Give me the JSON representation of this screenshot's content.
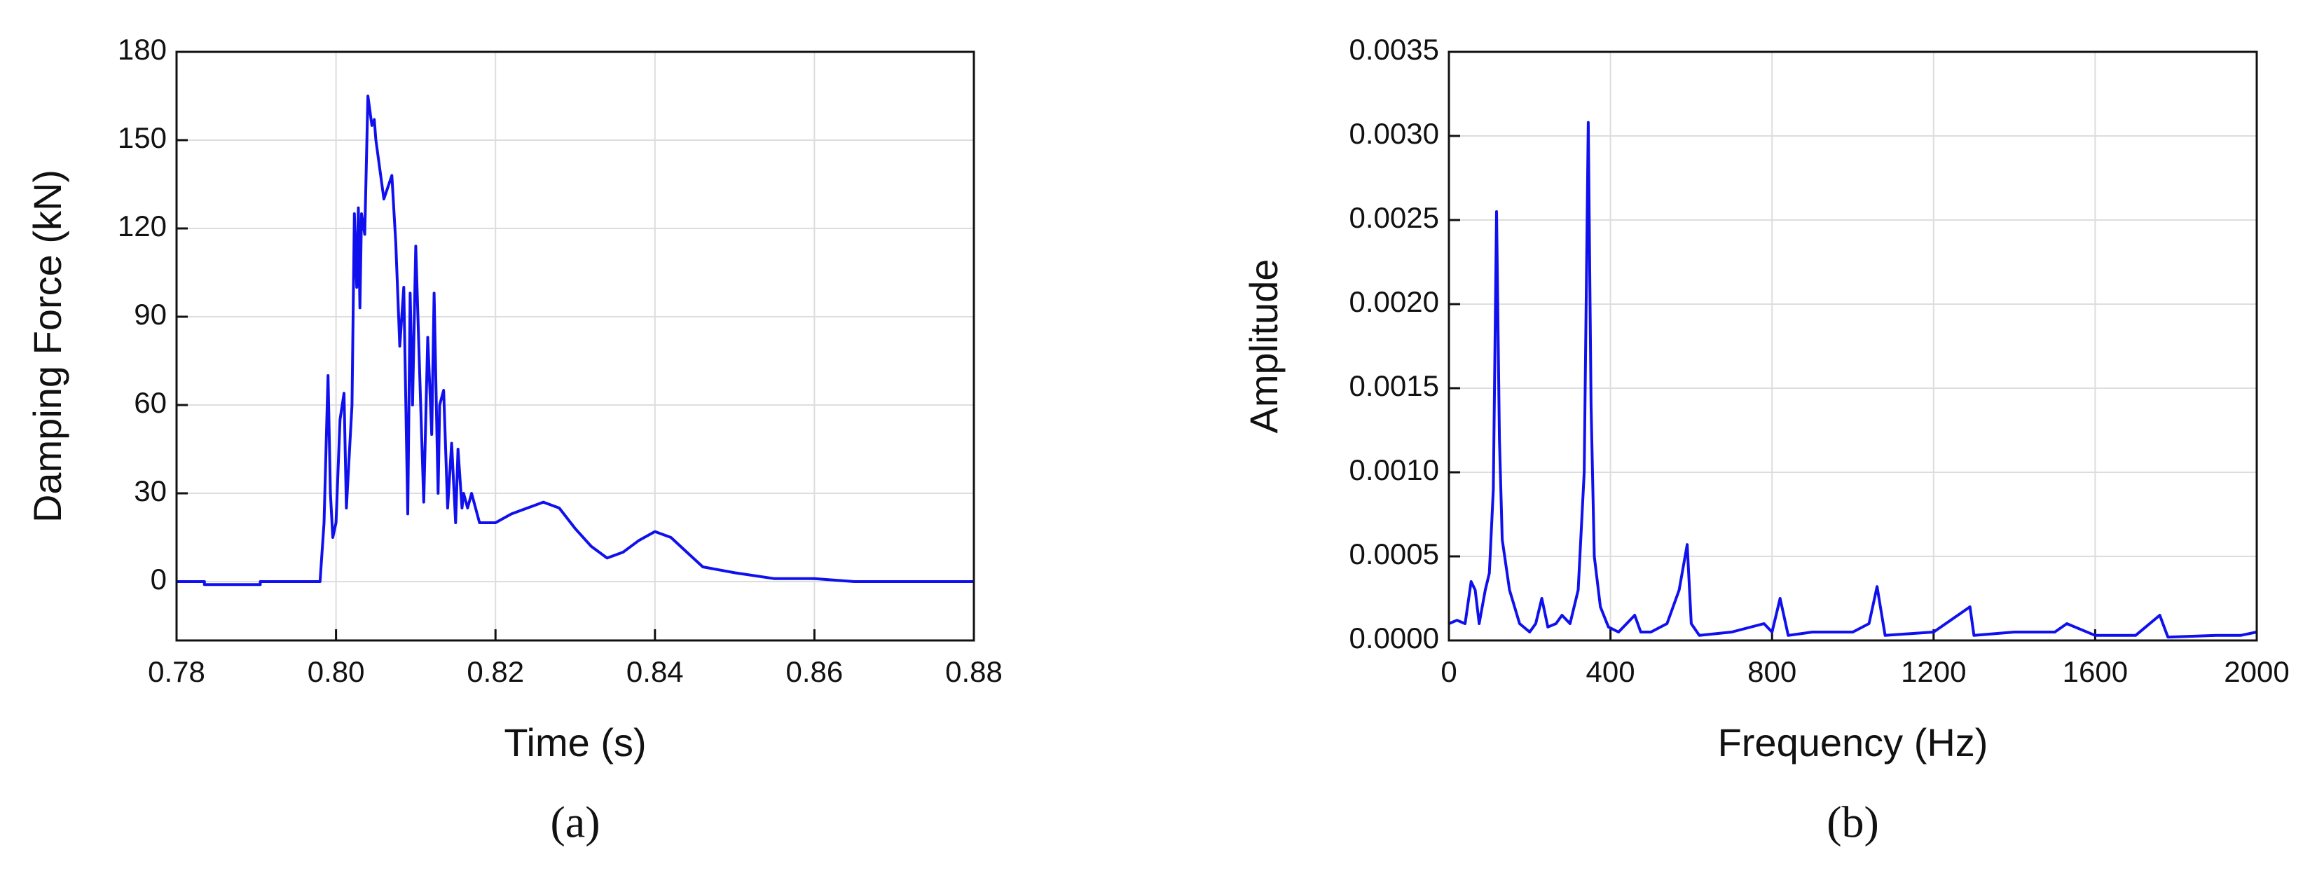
{
  "chart_data": [
    {
      "type": "line",
      "caption": "(a)",
      "x_label": "Time (s)",
      "y_label": "Damping Force (kN)",
      "color": "#1010ee",
      "grid": true,
      "xlim": [
        0.78,
        0.88
      ],
      "ylim": [
        -20,
        180
      ],
      "xticks": [
        0.78,
        {
          "value": 0.8,
          "label": "0.80"
        },
        0.82,
        0.84,
        0.86,
        0.88
      ],
      "yticks": [
        0,
        30,
        60,
        90,
        120,
        150,
        180
      ],
      "x": [
        0.78,
        0.7835,
        0.7835,
        0.7905,
        0.7905,
        0.798,
        0.7985,
        0.7988,
        0.799,
        0.7993,
        0.7996,
        0.8,
        0.8005,
        0.801,
        0.8013,
        0.8018,
        0.802,
        0.8023,
        0.8026,
        0.8028,
        0.803,
        0.8032,
        0.8036,
        0.804,
        0.8045,
        0.8048,
        0.805,
        0.806,
        0.807,
        0.8075,
        0.808,
        0.8085,
        0.809,
        0.8093,
        0.8096,
        0.81,
        0.8105,
        0.811,
        0.8115,
        0.812,
        0.8123,
        0.8128,
        0.813,
        0.8135,
        0.814,
        0.8145,
        0.815,
        0.8153,
        0.8158,
        0.816,
        0.8165,
        0.817,
        0.818,
        0.819,
        0.82,
        0.822,
        0.824,
        0.826,
        0.828,
        0.83,
        0.832,
        0.834,
        0.836,
        0.838,
        0.84,
        0.842,
        0.844,
        0.846,
        0.848,
        0.85,
        0.855,
        0.86,
        0.865,
        0.87,
        0.875,
        0.88
      ],
      "values": [
        0,
        0,
        -1,
        -1,
        0,
        0,
        20,
        50,
        70,
        30,
        15,
        20,
        55,
        64,
        25,
        50,
        60,
        125,
        100,
        127,
        93,
        125,
        118,
        165,
        155,
        157,
        150,
        130,
        138,
        115,
        80,
        100,
        23,
        98,
        60,
        114,
        70,
        27,
        83,
        50,
        98,
        30,
        60,
        65,
        25,
        47,
        20,
        45,
        25,
        30,
        25,
        30,
        20,
        20,
        20,
        23,
        25,
        27,
        25,
        18,
        12,
        8,
        10,
        14,
        17,
        15,
        10,
        5,
        4,
        3,
        1,
        1,
        0,
        0,
        0,
        0
      ]
    },
    {
      "type": "line",
      "caption": "(b)",
      "x_label": "Frequency (Hz)",
      "y_label": "Amplitude",
      "color": "#1010ee",
      "grid": true,
      "xlim": [
        0,
        2000
      ],
      "ylim": [
        0,
        0.0035
      ],
      "xticks": [
        0,
        400,
        800,
        1200,
        1600,
        2000
      ],
      "yticks": [
        {
          "value": 0,
          "label": "0.0000"
        },
        {
          "value": 0.0005,
          "label": "0.0005"
        },
        {
          "value": 0.001,
          "label": "0.0010"
        },
        {
          "value": 0.0015,
          "label": "0.0015"
        },
        {
          "value": 0.002,
          "label": "0.0020"
        },
        {
          "value": 0.0025,
          "label": "0.0025"
        },
        {
          "value": 0.003,
          "label": "0.0030"
        },
        {
          "value": 0.0035,
          "label": "0.0035"
        }
      ],
      "x": [
        0,
        20,
        40,
        55,
        65,
        75,
        90,
        100,
        110,
        118,
        125,
        132,
        150,
        175,
        200,
        215,
        230,
        245,
        265,
        280,
        300,
        320,
        335,
        345,
        352,
        360,
        375,
        395,
        420,
        440,
        460,
        475,
        500,
        540,
        570,
        590,
        600,
        620,
        700,
        780,
        800,
        820,
        840,
        900,
        1000,
        1040,
        1060,
        1080,
        1200,
        1290,
        1300,
        1400,
        1500,
        1530,
        1600,
        1700,
        1760,
        1780,
        1900,
        1960,
        2000
      ],
      "values": [
        0.0001,
        0.00012,
        0.0001,
        0.00035,
        0.0003,
        0.0001,
        0.0003,
        0.0004,
        0.0009,
        0.00255,
        0.0012,
        0.0006,
        0.0003,
        0.0001,
        5e-05,
        0.0001,
        0.00025,
        8e-05,
        0.0001,
        0.00015,
        0.0001,
        0.0003,
        0.001,
        0.00308,
        0.0014,
        0.0005,
        0.0002,
        8e-05,
        5e-05,
        0.0001,
        0.00015,
        5e-05,
        5e-05,
        0.0001,
        0.0003,
        0.00057,
        0.0001,
        3e-05,
        5e-05,
        0.0001,
        5e-05,
        0.00025,
        3e-05,
        5e-05,
        5e-05,
        0.0001,
        0.00032,
        3e-05,
        5e-05,
        0.0002,
        3e-05,
        5e-05,
        5e-05,
        0.0001,
        3e-05,
        3e-05,
        0.00015,
        2e-05,
        3e-05,
        3e-05,
        5e-05
      ]
    }
  ]
}
